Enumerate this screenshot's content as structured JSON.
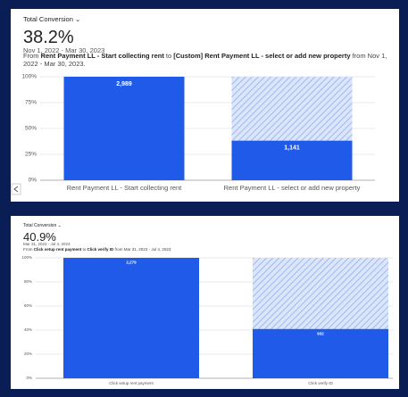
{
  "chart_data": [
    {
      "type": "bar",
      "metric": "Total Conversion",
      "headline": "38.2%",
      "date_range": "Nov 1, 2022 - Mar 30, 2023",
      "description": [
        "From ",
        "Rent Payment LL - Start collecting rent",
        " to ",
        "[Custom] Rent Payment LL - select or add new property",
        " from Nov 1, 2022 - Mar 30, 2023."
      ],
      "categories": [
        "Rent Payment LL - Start collecting rent",
        "Rent Payment LL - select or add new property"
      ],
      "values": [
        100,
        38.2
      ],
      "count_labels": [
        "2,989",
        "1,141"
      ],
      "color": "#1f5be8",
      "ylim": [
        0,
        100
      ],
      "yticks": [
        {
          "value": 0,
          "label": "0%"
        },
        {
          "value": 25,
          "label": "25%"
        },
        {
          "value": 50,
          "label": "50%"
        },
        {
          "value": 75,
          "label": "75%"
        },
        {
          "value": 100,
          "label": "100%"
        }
      ],
      "grid": true
    },
    {
      "type": "bar",
      "metric": "Total Conversion",
      "headline": "40.9%",
      "date_range": "Mar 31, 2023 - Jul 4, 2023",
      "description": [
        "From ",
        "Click setup rent payment",
        " to ",
        "Click verify ID",
        " from Mar 31, 2023 - Jul 4, 2023"
      ],
      "categories": [
        "Click setup rent payment",
        "Click verify ID"
      ],
      "values": [
        100,
        40.9
      ],
      "count_labels": [
        "2,279",
        "932"
      ],
      "color": "#1f5be8",
      "ylim": [
        0,
        100
      ],
      "yticks": [
        {
          "value": 0,
          "label": "0%"
        },
        {
          "value": 20,
          "label": "20%"
        },
        {
          "value": 40,
          "label": "40%"
        },
        {
          "value": 60,
          "label": "60%"
        },
        {
          "value": 80,
          "label": "80%"
        },
        {
          "value": 100,
          "label": "100%"
        }
      ],
      "grid": true
    }
  ]
}
